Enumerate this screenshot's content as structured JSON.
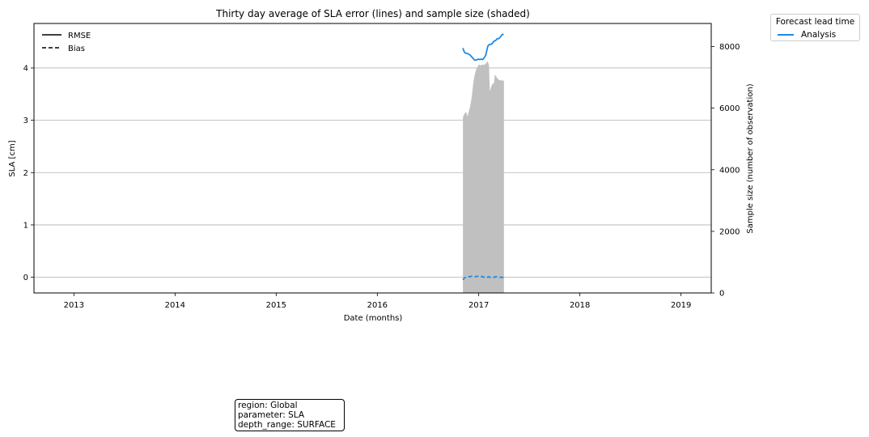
{
  "chart_data": {
    "type": "line",
    "title": "Thirty day average of SLA error (lines) and sample size (shaded)",
    "xlabel": "Date (months)",
    "ylabel": "SLA [cm]",
    "y2label": "Sample size (number of observation)",
    "xlim": [
      "2012-08-10",
      "2019-04-20"
    ],
    "ylim": [
      -0.3,
      4.85
    ],
    "y2lim": [
      0,
      8750
    ],
    "x_ticks": [
      "2013-01-01",
      "2014-01-01",
      "2015-01-01",
      "2016-01-01",
      "2017-01-01",
      "2018-01-01",
      "2019-01-01"
    ],
    "x_tick_labels": [
      "2013",
      "2014",
      "2015",
      "2016",
      "2017",
      "2018",
      "2019"
    ],
    "y_ticks": [
      0,
      1,
      2,
      3,
      4
    ],
    "y_tick_labels": [
      "0",
      "1",
      "2",
      "3",
      "4"
    ],
    "y2_ticks": [
      0,
      2000,
      4000,
      6000,
      8000
    ],
    "y2_tick_labels": [
      "0",
      "2000",
      "4000",
      "6000",
      "8000"
    ],
    "grid": "horizontal",
    "series_legend": [
      {
        "name": "RMSE",
        "style": "solid"
      },
      {
        "name": "Bias",
        "style": "dashed"
      }
    ],
    "lead_time_legend": {
      "title": "Forecast lead time",
      "entries": [
        {
          "name": "Analysis",
          "color": "#1e88e5"
        }
      ]
    },
    "sample_size": {
      "color": "#c0c0c0",
      "points": [
        [
          "2016-11-05",
          5700
        ],
        [
          "2016-11-08",
          5780
        ],
        [
          "2016-11-12",
          5840
        ],
        [
          "2016-11-17",
          5870
        ],
        [
          "2016-11-21",
          5730
        ],
        [
          "2016-11-26",
          5880
        ],
        [
          "2016-11-30",
          6020
        ],
        [
          "2016-12-04",
          6200
        ],
        [
          "2016-12-08",
          6450
        ],
        [
          "2016-12-12",
          6800
        ],
        [
          "2016-12-17",
          7060
        ],
        [
          "2016-12-21",
          7200
        ],
        [
          "2016-12-25",
          7300
        ],
        [
          "2016-12-30",
          7380
        ],
        [
          "2017-01-04",
          7420
        ],
        [
          "2017-01-09",
          7380
        ],
        [
          "2017-01-14",
          7420
        ],
        [
          "2017-01-20",
          7400
        ],
        [
          "2017-01-27",
          7450
        ],
        [
          "2017-02-02",
          7520
        ],
        [
          "2017-02-07",
          7400
        ],
        [
          "2017-02-10",
          6550
        ],
        [
          "2017-02-14",
          6670
        ],
        [
          "2017-02-19",
          6780
        ],
        [
          "2017-02-25",
          6820
        ],
        [
          "2017-02-28",
          7080
        ],
        [
          "2017-03-04",
          7050
        ],
        [
          "2017-03-09",
          6970
        ],
        [
          "2017-03-15",
          6920
        ],
        [
          "2017-03-22",
          6900
        ],
        [
          "2017-03-27",
          6900
        ],
        [
          "2017-04-02",
          6890
        ]
      ]
    },
    "series": [
      {
        "name": "RMSE",
        "color": "#1e88e5",
        "points": [
          [
            "2016-11-05",
            4.38
          ],
          [
            "2016-11-08",
            4.33
          ],
          [
            "2016-11-12",
            4.29
          ],
          [
            "2016-11-17",
            4.28
          ],
          [
            "2016-11-24",
            4.27
          ],
          [
            "2016-11-30",
            4.25
          ],
          [
            "2016-12-07",
            4.21
          ],
          [
            "2016-12-12",
            4.18
          ],
          [
            "2016-12-17",
            4.15
          ],
          [
            "2016-12-24",
            4.15
          ],
          [
            "2016-12-30",
            4.17
          ],
          [
            "2017-01-05",
            4.16
          ],
          [
            "2017-01-10",
            4.17
          ],
          [
            "2017-01-15",
            4.16
          ],
          [
            "2017-01-20",
            4.19
          ],
          [
            "2017-01-26",
            4.24
          ],
          [
            "2017-02-03",
            4.42
          ],
          [
            "2017-02-09",
            4.45
          ],
          [
            "2017-02-14",
            4.45
          ],
          [
            "2017-02-19",
            4.47
          ],
          [
            "2017-02-25",
            4.51
          ],
          [
            "2017-03-04",
            4.53
          ],
          [
            "2017-03-09",
            4.56
          ],
          [
            "2017-03-15",
            4.56
          ],
          [
            "2017-03-21",
            4.6
          ],
          [
            "2017-03-27",
            4.64
          ],
          [
            "2017-04-01",
            4.64
          ]
        ]
      },
      {
        "name": "Bias",
        "color": "#1e88e5",
        "points": [
          [
            "2016-11-05",
            -0.05
          ],
          [
            "2016-11-09",
            -0.02
          ],
          [
            "2016-11-15",
            0.0
          ],
          [
            "2016-11-22",
            0.01
          ],
          [
            "2016-11-29",
            0.01
          ],
          [
            "2016-12-06",
            0.02
          ],
          [
            "2016-12-12",
            0.02
          ],
          [
            "2016-12-19",
            0.01
          ],
          [
            "2016-12-25",
            0.02
          ],
          [
            "2017-01-01",
            0.01
          ],
          [
            "2017-01-08",
            0.02
          ],
          [
            "2017-01-15",
            0.01
          ],
          [
            "2017-01-22",
            0.0
          ],
          [
            "2017-01-29",
            -0.01
          ],
          [
            "2017-02-05",
            0.01
          ],
          [
            "2017-02-12",
            0.0
          ],
          [
            "2017-02-19",
            0.01
          ],
          [
            "2017-02-26",
            0.0
          ],
          [
            "2017-03-05",
            0.01
          ],
          [
            "2017-03-12",
            0.0
          ],
          [
            "2017-03-19",
            0.0
          ],
          [
            "2017-03-26",
            0.0
          ],
          [
            "2017-04-01",
            -0.01
          ]
        ]
      }
    ]
  },
  "info_box": {
    "line1": "region: Global",
    "line2": "parameter: SLA",
    "line3": "depth_range: SURFACE"
  }
}
